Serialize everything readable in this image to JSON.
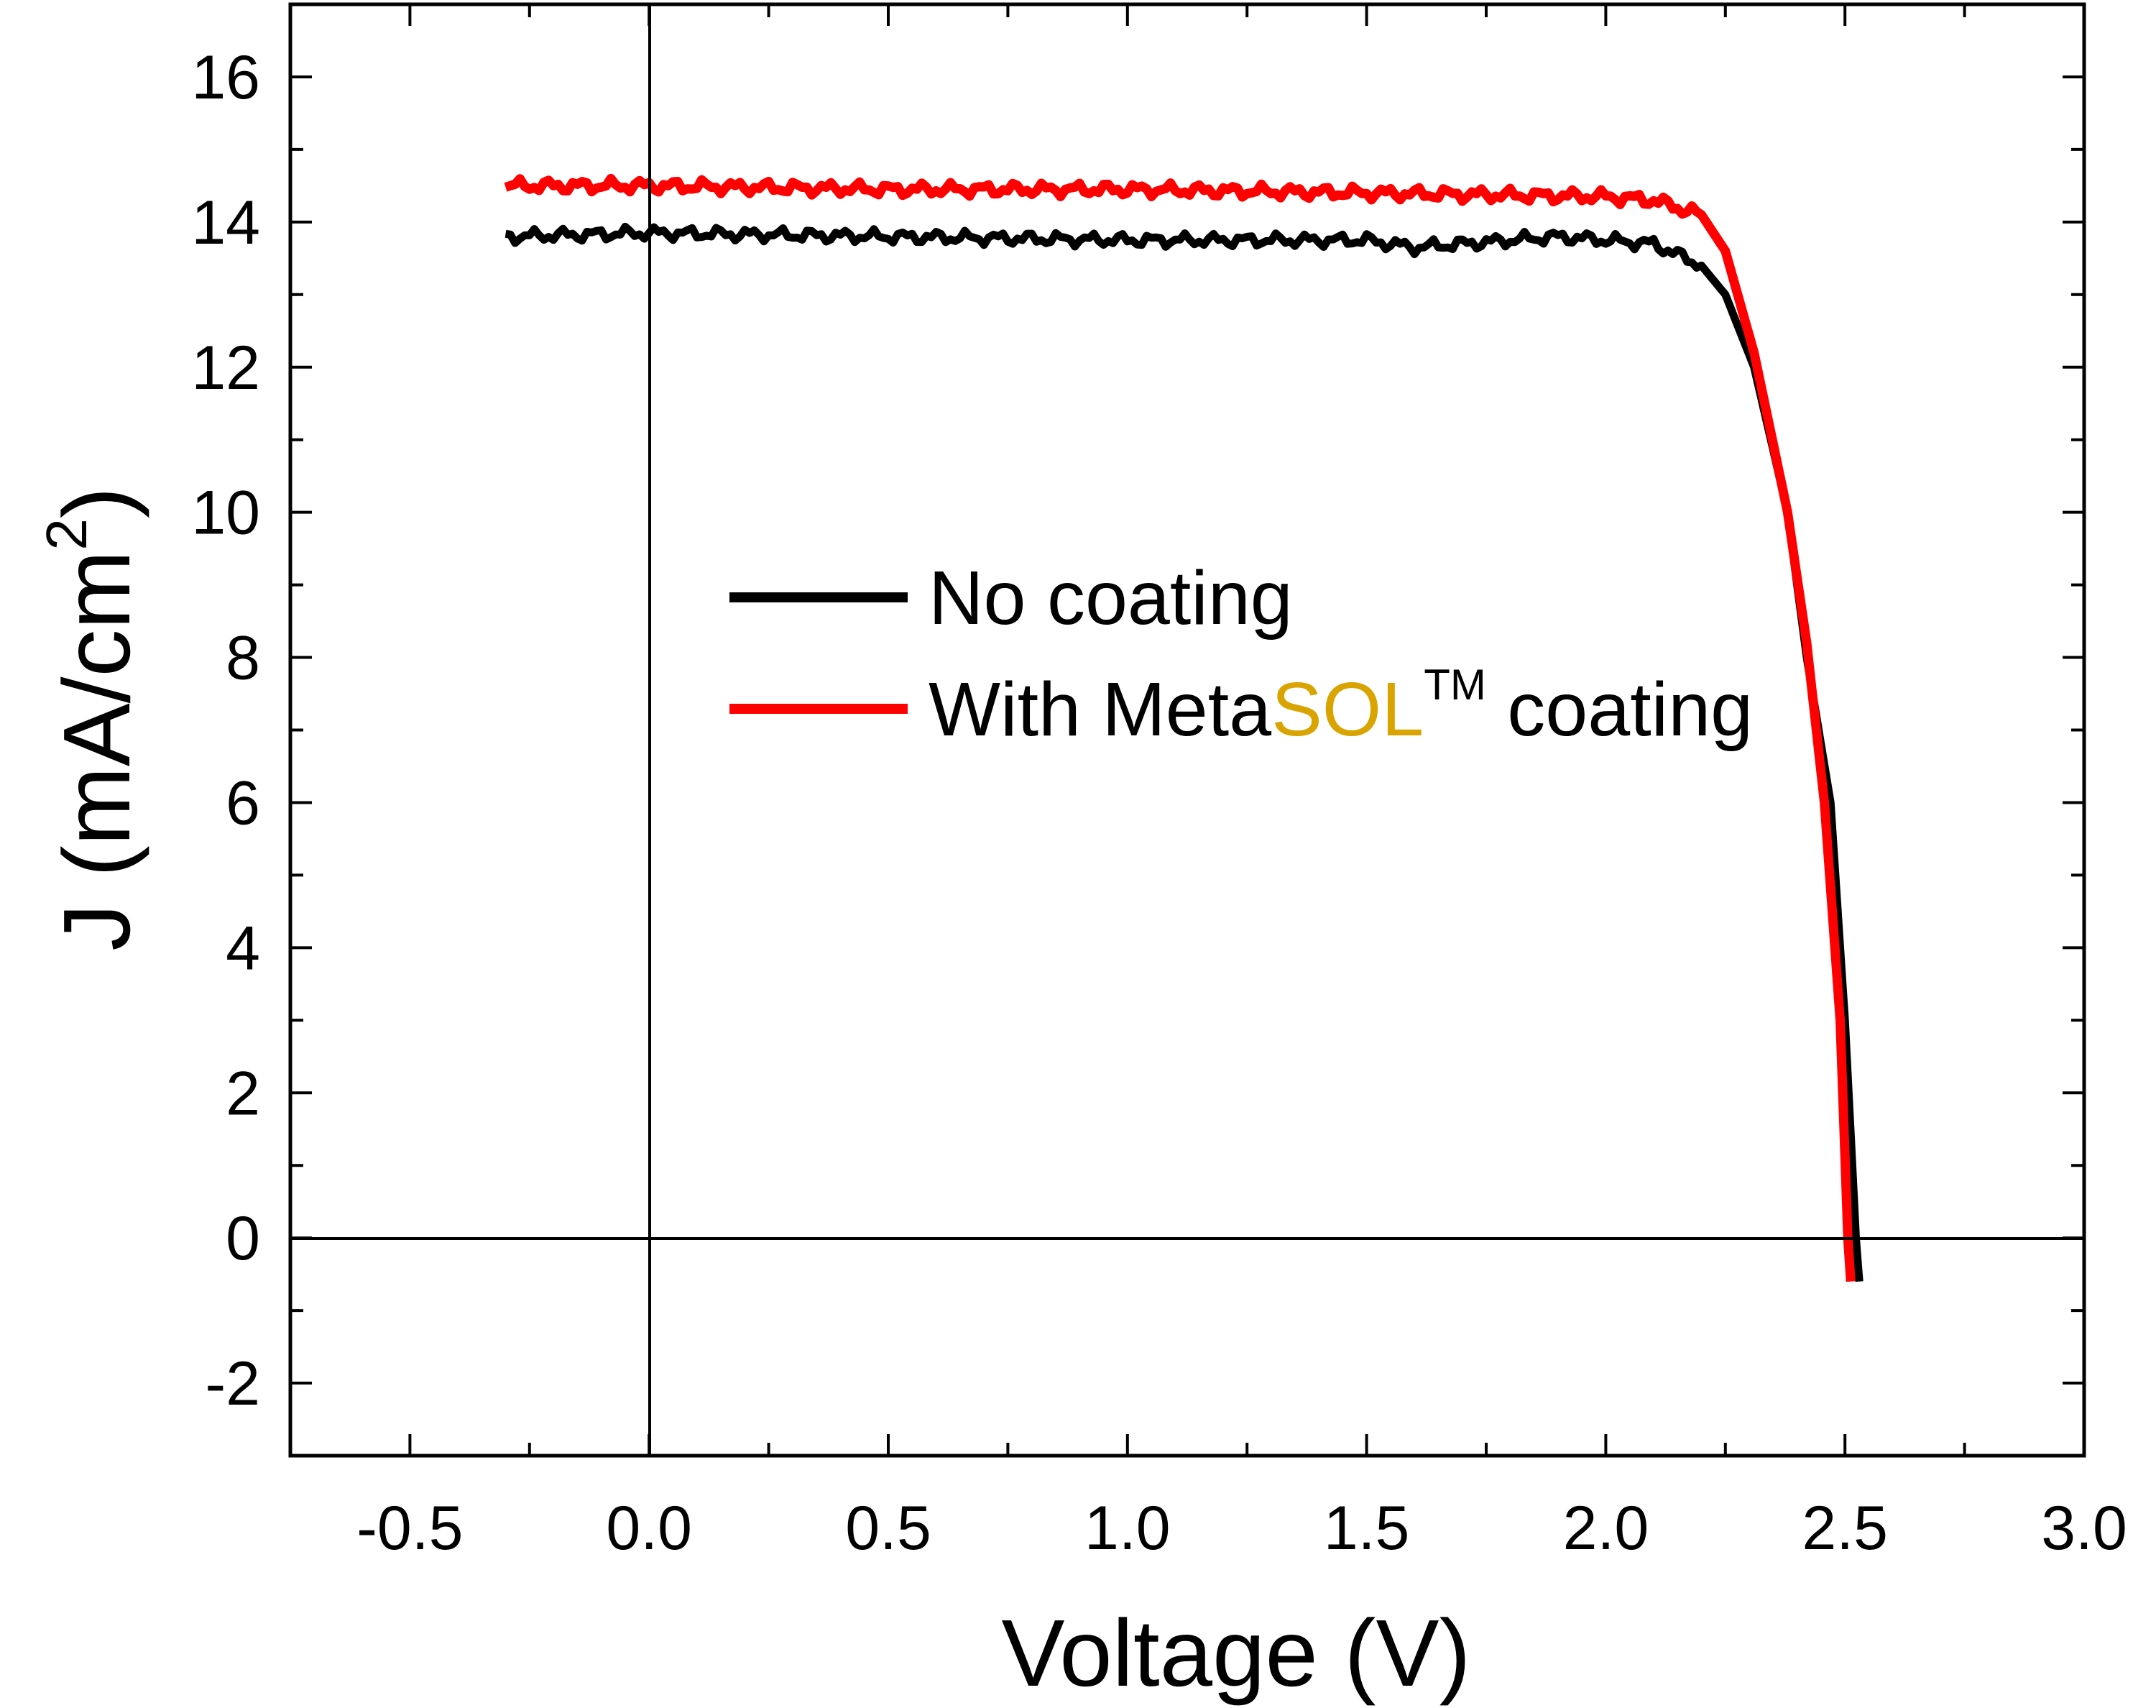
{
  "chart_data": {
    "type": "line",
    "xlabel": "Voltage (V)",
    "ylabel_parts": {
      "main": "J (mA/cm",
      "sup": "2",
      "end": ")"
    },
    "xlim": [
      -0.75,
      3.0
    ],
    "ylim": [
      -3,
      17
    ],
    "x_ticks": [
      "-0.5",
      "0.0",
      "0.5",
      "1.0",
      "1.5",
      "2.0",
      "2.5",
      "3.0"
    ],
    "y_ticks": [
      "-2",
      "0",
      "2",
      "4",
      "6",
      "8",
      "10",
      "12",
      "14",
      "16"
    ],
    "grid": false,
    "legend_placement": "center",
    "series": [
      {
        "name": "No coating",
        "color": "#000000",
        "x": [
          -0.3,
          0.0,
          0.5,
          1.0,
          1.5,
          1.6,
          1.9,
          2.0,
          2.1,
          2.2,
          2.25,
          2.31,
          2.38,
          2.42,
          2.47,
          2.5,
          2.523,
          2.53
        ],
        "y": [
          13.8,
          13.85,
          13.8,
          13.75,
          13.75,
          13.65,
          13.8,
          13.75,
          13.7,
          13.4,
          13.0,
          12.0,
          10.0,
          8.0,
          6.0,
          3.0,
          0.0,
          -0.6
        ]
      },
      {
        "name": "With MetaSOL™ coating",
        "color": "#ff0000",
        "x": [
          -0.3,
          0.0,
          0.5,
          1.0,
          1.5,
          2.0,
          2.1,
          2.2,
          2.25,
          2.31,
          2.38,
          2.42,
          2.457,
          2.49,
          2.506,
          2.512
        ],
        "y": [
          14.5,
          14.5,
          14.45,
          14.45,
          14.4,
          14.35,
          14.3,
          14.1,
          13.6,
          12.2,
          10.0,
          8.2,
          6.0,
          3.0,
          0.0,
          -0.6
        ]
      }
    ],
    "legend": {
      "entry1": "No coating",
      "entry2_prefix": "With Meta",
      "entry2_brand": "SOL",
      "entry2_tm": "TM",
      "entry2_suffix": " coating",
      "brand_color": "#d9a300"
    }
  }
}
